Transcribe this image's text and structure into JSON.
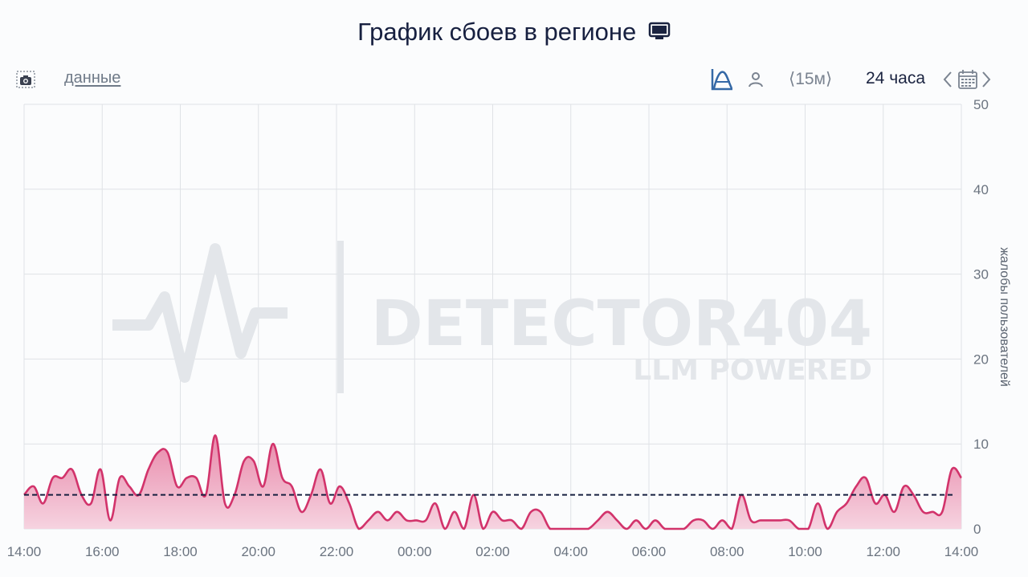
{
  "header": {
    "title": "График сбоев в регионе",
    "title_icon": "tv-icon"
  },
  "toolbar": {
    "screenshot_icon": "camera-icon",
    "data_link": "данные",
    "chart_mode_icon": "area-chart-icon",
    "person_icon": "person-icon",
    "interval": "⟨15м⟩",
    "range": "24 часа",
    "calendar_icon": "calendar-icon"
  },
  "watermark": {
    "brand": "DETECTOR404",
    "tagline": "LLM POWERED"
  },
  "colors": {
    "series_line": "#d2336b",
    "series_fill_top": "#e889aa",
    "series_fill_bottom": "#f6d3e0",
    "baseline": "#172040",
    "grid": "#dfe2e6",
    "accent_icon": "#3468a6"
  },
  "chart_data": {
    "type": "area",
    "ylabel": "жалобы пользователей",
    "ylim": [
      0,
      50
    ],
    "yticks": [
      0,
      10,
      20,
      30,
      40,
      50
    ],
    "xlim": [
      "14:00",
      "14:00"
    ],
    "xticks": [
      "14:00",
      "16:00",
      "18:00",
      "20:00",
      "22:00",
      "00:00",
      "02:00",
      "04:00",
      "06:00",
      "08:00",
      "10:00",
      "12:00",
      "14:00"
    ],
    "y_axis_position": "right",
    "grid": true,
    "interval_minutes": 15,
    "baseline_value": 4,
    "series": [
      {
        "values": [
          4,
          5,
          3,
          6,
          6,
          7,
          4,
          3,
          7,
          1,
          6,
          5,
          4,
          7,
          9,
          9,
          5,
          6,
          6,
          4,
          11,
          3,
          4,
          8,
          8,
          5,
          10,
          6,
          5,
          2,
          4,
          7,
          3,
          5,
          3,
          0,
          1,
          2,
          1,
          2,
          1,
          1,
          1,
          3,
          0,
          2,
          0,
          4,
          0,
          2,
          1,
          1,
          0,
          2,
          2,
          0,
          0,
          0,
          0,
          0,
          1,
          2,
          1,
          0,
          1,
          0,
          1,
          0,
          0,
          0,
          1,
          1,
          0,
          1,
          0,
          4,
          1,
          1,
          1,
          1,
          1,
          0,
          0,
          3,
          0,
          2,
          3,
          5,
          6,
          3,
          4,
          2,
          5,
          4,
          2,
          2,
          2,
          7,
          6
        ]
      }
    ]
  }
}
